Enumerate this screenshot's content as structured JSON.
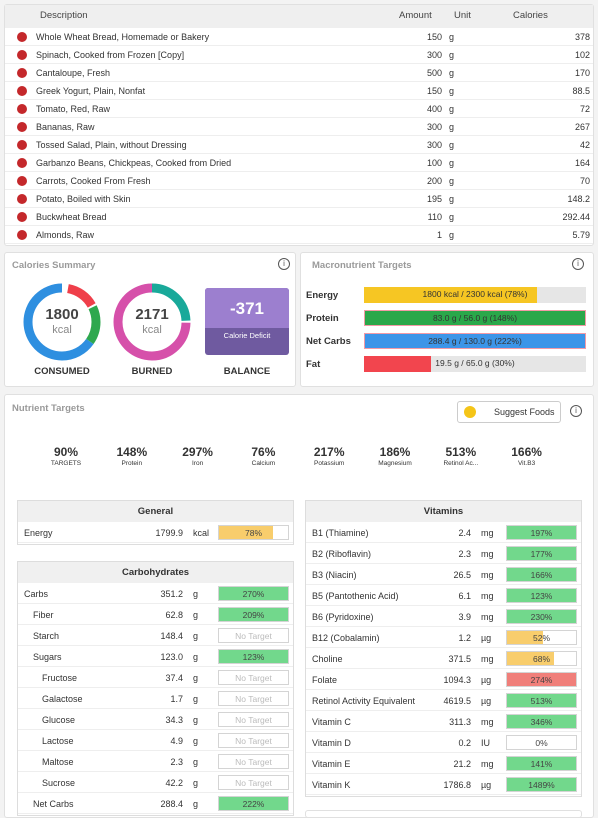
{
  "food_log": {
    "headers": [
      "Description",
      "Amount",
      "Unit",
      "Calories"
    ],
    "rows": [
      [
        "Whole Wheat Bread, Homemade or Bakery",
        150,
        "g",
        378
      ],
      [
        "Spinach, Cooked from Frozen [Copy]",
        300,
        "g",
        102
      ],
      [
        "Cantaloupe, Fresh",
        500,
        "g",
        170
      ],
      [
        "Greek Yogurt, Plain, Nonfat",
        150,
        "g",
        88.5
      ],
      [
        "Tomato, Red, Raw",
        400,
        "g",
        72
      ],
      [
        "Bananas, Raw",
        300,
        "g",
        267
      ],
      [
        "Tossed Salad, Plain, without Dressing",
        300,
        "g",
        42
      ],
      [
        "Garbanzo Beans, Chickpeas, Cooked from Dried",
        100,
        "g",
        164
      ],
      [
        "Carrots, Cooked From Fresh",
        200,
        "g",
        70
      ],
      [
        "Potato, Boiled with Skin",
        195,
        "g",
        148.2
      ],
      [
        "Buckwheat Bread",
        110,
        "g",
        292.44
      ],
      [
        "Almonds, Raw",
        1,
        "g",
        5.79
      ]
    ]
  },
  "calories_summary": {
    "title": "Calories Summary",
    "consumed": {
      "value": 1800,
      "unit": "kcal",
      "label": "CONSUMED"
    },
    "burned": {
      "value": 2171,
      "unit": "kcal",
      "label": "BURNED"
    },
    "balance": {
      "value": -371,
      "note": "Calorie Deficit",
      "label": "BALANCE"
    }
  },
  "macronutrients": {
    "title": "Macronutrient Targets",
    "rows": [
      {
        "name": "Energy",
        "percent": 78,
        "label": "1800 kcal / 2300 kcal (78%)",
        "color": "#f6c623"
      },
      {
        "name": "Protein",
        "percent": 148,
        "label": "83.0 g / 56.0 g (148%)",
        "color": "#2aa84a"
      },
      {
        "name": "Net Carbs",
        "percent": 222,
        "label": "288.4 g / 130.0 g (222%)",
        "color": "#3c95e8"
      },
      {
        "name": "Fat",
        "percent": 30,
        "label": "19.5 g / 65.0 g (30%)",
        "color": "#f2454e"
      }
    ]
  },
  "nutrient_targets": {
    "title": "Nutrient Targets",
    "button": "Suggest Foods",
    "names": [
      "TARGETS",
      "Protein",
      "Iron",
      "Calcium",
      "Potassium",
      "Magnesium",
      "Retinol Ac...",
      "Vit.B3"
    ],
    "values": [
      90,
      148,
      297,
      76,
      217,
      186,
      513,
      166
    ],
    "value_labels": [
      "90%",
      "148%",
      "297%",
      "76%",
      "217%",
      "186%",
      "513%",
      "166%"
    ],
    "colors": [
      "#a95fc8",
      "#2ea84e",
      "#2ea84e",
      "#f2cc2a",
      "#2ea84e",
      "#2ea84e",
      "#2ea84e",
      "#2ea84e"
    ]
  },
  "general": {
    "title": "General",
    "rows": [
      {
        "name": "Energy",
        "amount": "1799.9",
        "unit": "kcal",
        "percent": 78,
        "percent_label": "78%",
        "color": "#f8cd6c"
      }
    ]
  },
  "carbohydrates": {
    "title": "Carbohydrates",
    "rows": [
      {
        "name": "Carbs",
        "amount": "351.2",
        "unit": "g",
        "percent": 270,
        "percent_label": "270%",
        "color": "#72d88c",
        "children": [
          {
            "name": "Fiber",
            "amount": "62.8",
            "unit": "g",
            "percent": 209,
            "percent_label": "209%",
            "color": "#72d88c"
          },
          {
            "name": "Starch",
            "amount": "148.4",
            "unit": "g",
            "percent": null,
            "percent_label": "No Target"
          },
          {
            "name": "Sugars",
            "amount": "123.0",
            "unit": "g",
            "percent": 123,
            "percent_label": "123%",
            "color": "#72d88c",
            "children": [
              {
                "name": "Fructose",
                "amount": "37.4",
                "unit": "g",
                "percent": null,
                "percent_label": "No Target"
              },
              {
                "name": "Galactose",
                "amount": "1.7",
                "unit": "g",
                "percent": null,
                "percent_label": "No Target"
              },
              {
                "name": "Glucose",
                "amount": "34.3",
                "unit": "g",
                "percent": null,
                "percent_label": "No Target"
              },
              {
                "name": "Lactose",
                "amount": "4.9",
                "unit": "g",
                "percent": null,
                "percent_label": "No Target"
              },
              {
                "name": "Maltose",
                "amount": "2.3",
                "unit": "g",
                "percent": null,
                "percent_label": "No Target"
              },
              {
                "name": "Sucrose",
                "amount": "42.2",
                "unit": "g",
                "percent": null,
                "percent_label": "No Target"
              }
            ]
          },
          {
            "name": "Net Carbs",
            "amount": "288.4",
            "unit": "g",
            "percent": 222,
            "percent_label": "222%",
            "color": "#72d88c"
          }
        ]
      }
    ]
  },
  "vitamins": {
    "title": "Vitamins",
    "rows": [
      {
        "name": "B1 (Thiamine)",
        "amount": "2.4",
        "unit": "mg",
        "percent": 197,
        "percent_label": "197%",
        "color": "#72d88c"
      },
      {
        "name": "B2 (Riboflavin)",
        "amount": "2.3",
        "unit": "mg",
        "percent": 177,
        "percent_label": "177%",
        "color": "#72d88c"
      },
      {
        "name": "B3 (Niacin)",
        "amount": "26.5",
        "unit": "mg",
        "percent": 166,
        "percent_label": "166%",
        "color": "#72d88c"
      },
      {
        "name": "B5 (Pantothenic Acid)",
        "amount": "6.1",
        "unit": "mg",
        "percent": 123,
        "percent_label": "123%",
        "color": "#72d88c"
      },
      {
        "name": "B6 (Pyridoxine)",
        "amount": "3.9",
        "unit": "mg",
        "percent": 230,
        "percent_label": "230%",
        "color": "#72d88c"
      },
      {
        "name": "B12 (Cobalamin)",
        "amount": "1.2",
        "unit": "µg",
        "percent": 52,
        "percent_label": "52%",
        "color": "#f8cd6c"
      },
      {
        "name": "Choline",
        "amount": "371.5",
        "unit": "mg",
        "percent": 68,
        "percent_label": "68%",
        "color": "#f8cd6c"
      },
      {
        "name": "Folate",
        "amount": "1094.3",
        "unit": "µg",
        "percent": 274,
        "percent_label": "274%",
        "color": "#f07f7a"
      },
      {
        "name": "Retinol Activity Equivalent",
        "amount": "4619.5",
        "unit": "µg",
        "percent": 513,
        "percent_label": "513%",
        "color": "#72d88c"
      },
      {
        "name": "Vitamin C",
        "amount": "311.3",
        "unit": "mg",
        "percent": 346,
        "percent_label": "346%",
        "color": "#72d88c"
      },
      {
        "name": "Vitamin D",
        "amount": "0.2",
        "unit": "IU",
        "percent": 0,
        "percent_label": "0%"
      },
      {
        "name": "Vitamin E",
        "amount": "21.2",
        "unit": "mg",
        "percent": 141,
        "percent_label": "141%",
        "color": "#72d88c"
      },
      {
        "name": "Vitamin K",
        "amount": "1786.8",
        "unit": "µg",
        "percent": 1489,
        "percent_label": "1489%",
        "color": "#72d88c"
      }
    ]
  }
}
